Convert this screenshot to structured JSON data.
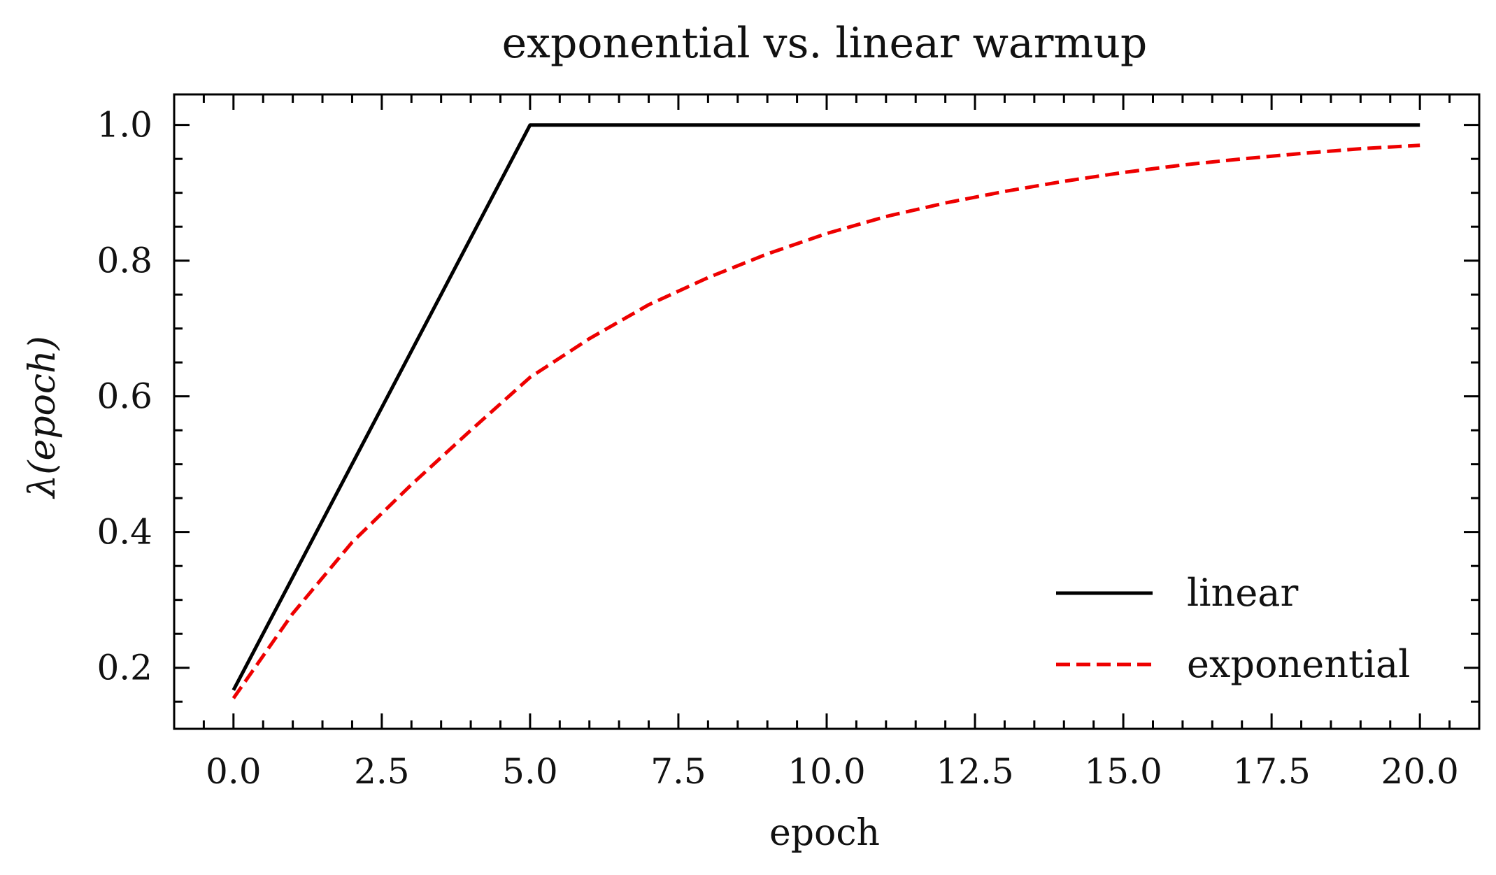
{
  "chart_data": {
    "type": "line",
    "title": "exponential vs. linear warmup",
    "xlabel": "epoch",
    "ylabel": "λ(epoch)",
    "xlim": [
      -1,
      21
    ],
    "ylim": [
      0.11,
      1.045
    ],
    "xticks": [
      0.0,
      2.5,
      5.0,
      7.5,
      10.0,
      12.5,
      15.0,
      17.5,
      20.0
    ],
    "xtick_labels": [
      "0.0",
      "2.5",
      "5.0",
      "7.5",
      "10.0",
      "12.5",
      "15.0",
      "17.5",
      "20.0"
    ],
    "yticks": [
      0.2,
      0.4,
      0.6,
      0.8,
      1.0
    ],
    "ytick_labels": [
      "0.2",
      "0.4",
      "0.6",
      "0.8",
      "1.0"
    ],
    "grid": false,
    "legend_position": "bottom-right",
    "series": [
      {
        "name": "linear",
        "color": "#000000",
        "style": "solid",
        "x": [
          0,
          5,
          20
        ],
        "y": [
          0.167,
          1.0,
          1.0
        ]
      },
      {
        "name": "exponential",
        "color": "#ee0000",
        "style": "dashed",
        "x": [
          0,
          1,
          2,
          3,
          4,
          5,
          6,
          7,
          8,
          9,
          10,
          11,
          12,
          13,
          14,
          15,
          16,
          17,
          18,
          19,
          20
        ],
        "y": [
          0.155,
          0.28,
          0.385,
          0.47,
          0.55,
          0.628,
          0.685,
          0.735,
          0.775,
          0.81,
          0.84,
          0.865,
          0.885,
          0.902,
          0.917,
          0.93,
          0.941,
          0.95,
          0.958,
          0.965,
          0.97
        ]
      }
    ]
  }
}
